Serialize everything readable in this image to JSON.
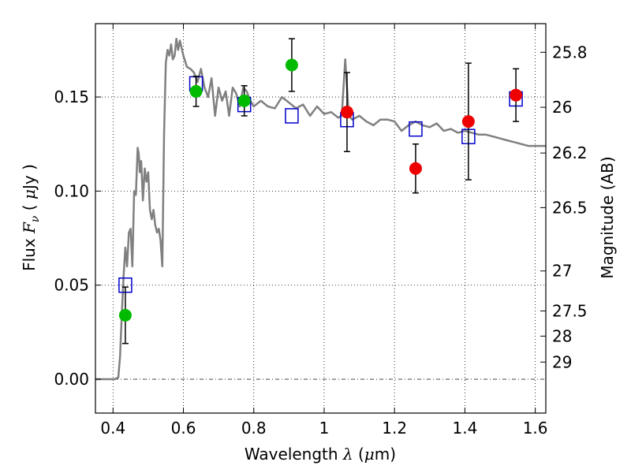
{
  "chart_data": {
    "type": "scatter",
    "xlabel": {
      "prefix": "Wavelength  ",
      "symbol": "λ",
      "unit_open": " (",
      "unit_mu": "μ",
      "unit_rest": "m)"
    },
    "ylabel": {
      "prefix": "Flux  ",
      "symbol": "F",
      "sub": "ν",
      "unit_open": "  ( ",
      "unit_mu": "μ",
      "unit_rest": "Jy )"
    },
    "y2label": "Magnitude (AB)",
    "xlim": [
      0.35,
      1.63
    ],
    "ylim": [
      -0.018,
      0.189
    ],
    "x_ticks": [
      "0.4",
      "0.6",
      "0.8",
      "1",
      "1.2",
      "1.4",
      "1.6"
    ],
    "x_tick_values": [
      0.4,
      0.6,
      0.8,
      1.0,
      1.2,
      1.4,
      1.6
    ],
    "y_ticks": [
      "0.00",
      "0.05",
      "0.10",
      "0.15"
    ],
    "y_tick_values": [
      0.0,
      0.05,
      0.1,
      0.15
    ],
    "y2_ticks": [
      "25.8",
      "26",
      "26.2",
      "26.5",
      "27",
      "27.5",
      "28",
      "29"
    ],
    "y2_tick_values": [
      25.8,
      26.0,
      26.2,
      26.5,
      27.0,
      27.5,
      28.0,
      29.0
    ],
    "grid": true,
    "model_spectrum": {
      "color": "#808080",
      "x": [
        0.35,
        0.39,
        0.405,
        0.415,
        0.42,
        0.425,
        0.43,
        0.435,
        0.44,
        0.445,
        0.45,
        0.455,
        0.46,
        0.465,
        0.47,
        0.473,
        0.476,
        0.48,
        0.485,
        0.49,
        0.495,
        0.5,
        0.505,
        0.51,
        0.515,
        0.52,
        0.525,
        0.53,
        0.535,
        0.54,
        0.545,
        0.55,
        0.555,
        0.56,
        0.565,
        0.57,
        0.575,
        0.58,
        0.585,
        0.59,
        0.6,
        0.61,
        0.62,
        0.63,
        0.64,
        0.65,
        0.66,
        0.67,
        0.68,
        0.69,
        0.7,
        0.71,
        0.72,
        0.73,
        0.74,
        0.75,
        0.76,
        0.77,
        0.78,
        0.79,
        0.8,
        0.82,
        0.84,
        0.86,
        0.88,
        0.9,
        0.92,
        0.94,
        0.96,
        0.98,
        1.0,
        1.02,
        1.04,
        1.05,
        1.06,
        1.07,
        1.08,
        1.1,
        1.12,
        1.14,
        1.16,
        1.18,
        1.2,
        1.22,
        1.24,
        1.26,
        1.28,
        1.3,
        1.32,
        1.34,
        1.36,
        1.38,
        1.4,
        1.42,
        1.44,
        1.46,
        1.48,
        1.5,
        1.52,
        1.54,
        1.56,
        1.58,
        1.6,
        1.63
      ],
      "y": [
        0.0,
        0.0,
        0.0,
        0.001,
        0.012,
        0.035,
        0.055,
        0.07,
        0.06,
        0.078,
        0.08,
        0.06,
        0.1,
        0.098,
        0.123,
        0.12,
        0.11,
        0.116,
        0.095,
        0.112,
        0.105,
        0.11,
        0.09,
        0.085,
        0.09,
        0.082,
        0.078,
        0.08,
        0.074,
        0.06,
        0.13,
        0.168,
        0.175,
        0.172,
        0.178,
        0.17,
        0.172,
        0.181,
        0.175,
        0.18,
        0.172,
        0.166,
        0.165,
        0.163,
        0.158,
        0.165,
        0.155,
        0.15,
        0.16,
        0.14,
        0.155,
        0.148,
        0.153,
        0.14,
        0.155,
        0.152,
        0.145,
        0.155,
        0.153,
        0.148,
        0.145,
        0.148,
        0.145,
        0.144,
        0.15,
        0.147,
        0.144,
        0.146,
        0.14,
        0.145,
        0.141,
        0.142,
        0.139,
        0.14,
        0.17,
        0.14,
        0.138,
        0.14,
        0.137,
        0.135,
        0.138,
        0.138,
        0.137,
        0.132,
        0.135,
        0.137,
        0.135,
        0.134,
        0.136,
        0.132,
        0.133,
        0.131,
        0.132,
        0.131,
        0.13,
        0.13,
        0.129,
        0.128,
        0.127,
        0.126,
        0.125,
        0.124,
        0.124,
        0.124
      ]
    },
    "model_boxes": {
      "color": "#0000cc",
      "x": [
        0.435,
        0.636,
        0.773,
        0.908,
        1.065,
        1.26,
        1.41,
        1.545
      ],
      "y": [
        0.05,
        0.157,
        0.146,
        0.14,
        0.138,
        0.133,
        0.129,
        0.149
      ]
    },
    "observations": [
      {
        "x": 0.435,
        "y": 0.034,
        "err": 0.015,
        "color": "#00bb00"
      },
      {
        "x": 0.636,
        "y": 0.153,
        "err": 0.008,
        "color": "#00bb00"
      },
      {
        "x": 0.773,
        "y": 0.148,
        "err": 0.008,
        "color": "#00bb00"
      },
      {
        "x": 0.908,
        "y": 0.167,
        "err": 0.014,
        "color": "#00bb00"
      },
      {
        "x": 1.065,
        "y": 0.142,
        "err": 0.021,
        "color": "#ee0000"
      },
      {
        "x": 1.26,
        "y": 0.112,
        "err": 0.013,
        "color": "#ee0000"
      },
      {
        "x": 1.41,
        "y": 0.137,
        "err": 0.031,
        "color": "#ee0000"
      },
      {
        "x": 1.545,
        "y": 0.151,
        "err": 0.014,
        "color": "#ee0000"
      }
    ],
    "zero_line": 0.0
  }
}
